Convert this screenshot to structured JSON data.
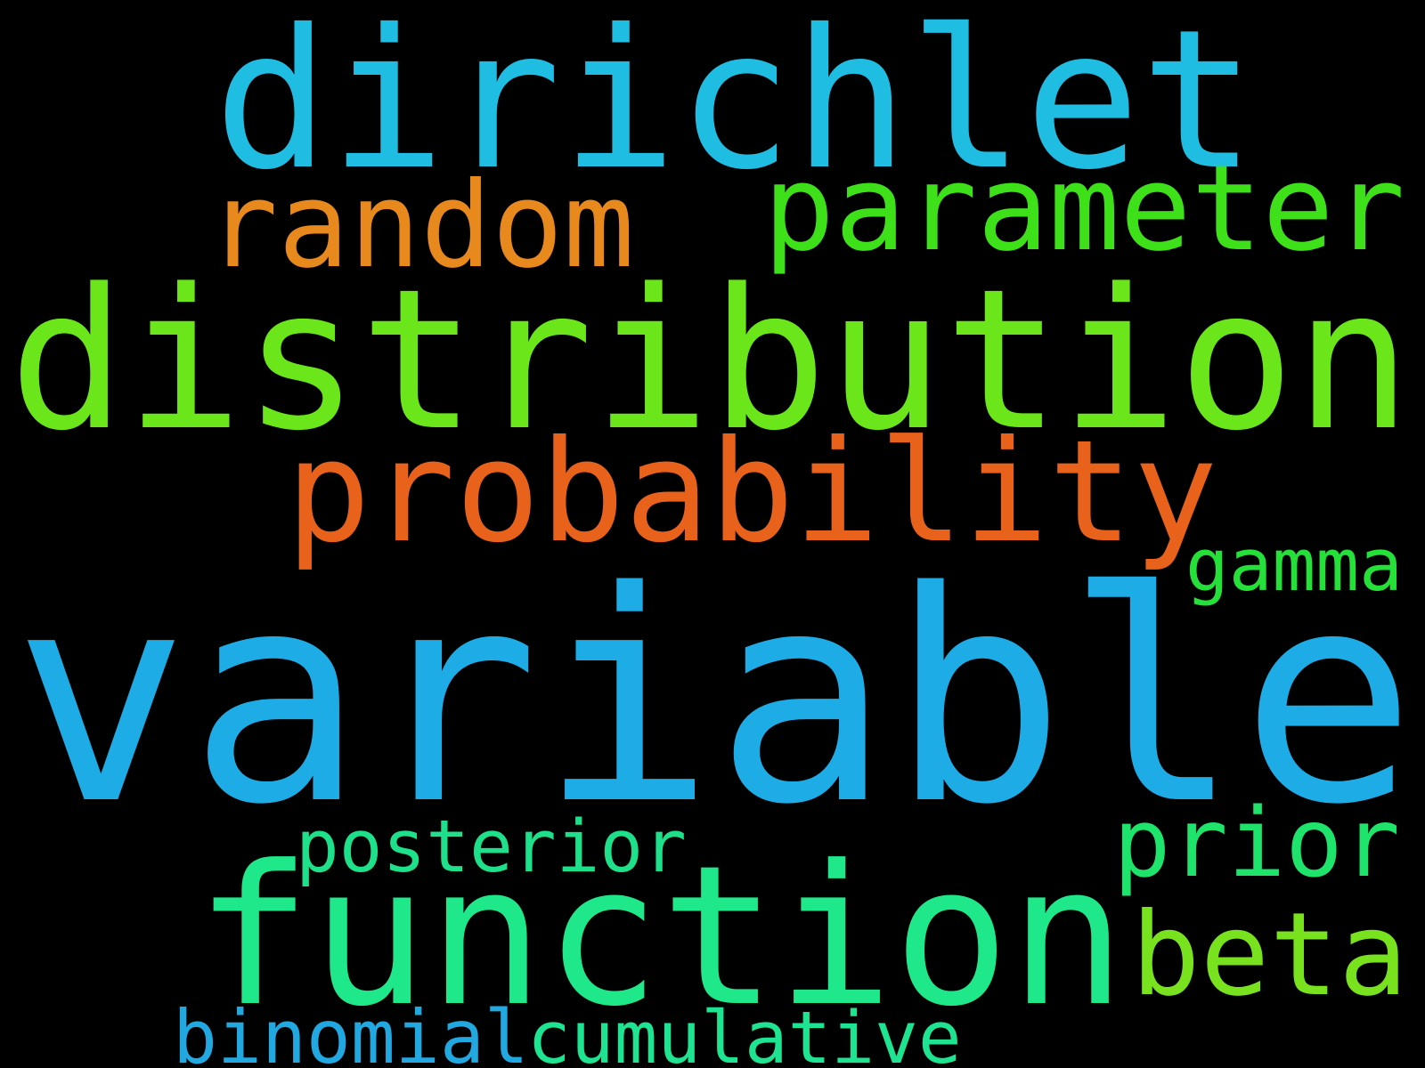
{
  "words": [
    "dirichlet",
    "random",
    "parameter",
    "distribution",
    "probability",
    "gamma",
    "variable",
    "posterior",
    "prior",
    "function",
    "beta",
    "binomial",
    "cumulative"
  ]
}
